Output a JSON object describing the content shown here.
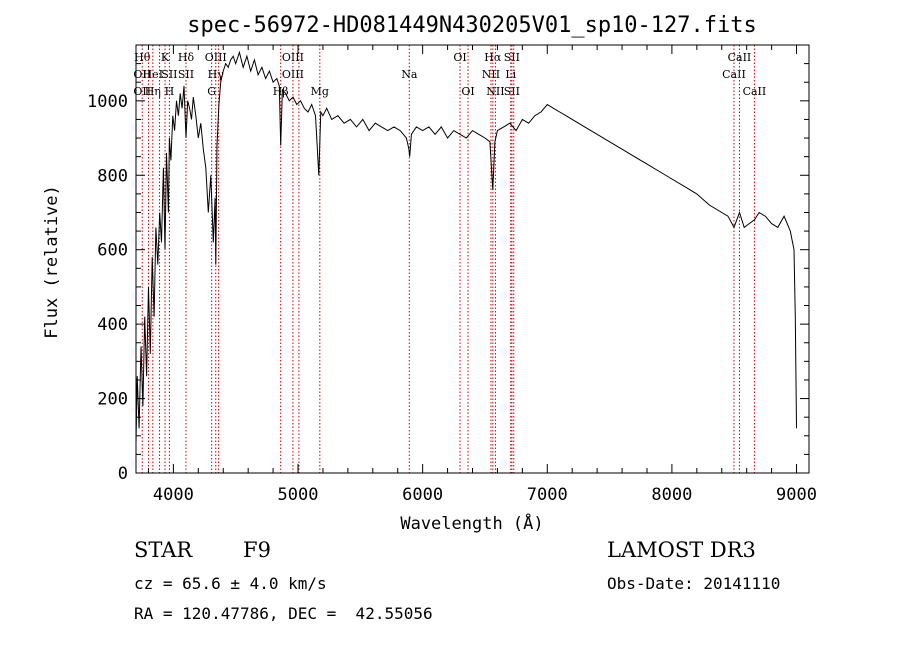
{
  "chart_data": {
    "type": "line",
    "title": "spec-56972-HD081449N430205V01_sp10-127.fits",
    "xlabel": "Wavelength (Å)",
    "ylabel": "Flux (relative)",
    "xlim": [
      3700,
      9100
    ],
    "ylim": [
      0,
      1150
    ],
    "xticks": [
      4000,
      5000,
      6000,
      7000,
      8000,
      9000
    ],
    "yticks": [
      0,
      200,
      400,
      600,
      800,
      1000
    ],
    "grid": false,
    "series": [
      {
        "name": "flux",
        "x": [
          3700,
          3710,
          3725,
          3740,
          3755,
          3770,
          3785,
          3800,
          3815,
          3830,
          3845,
          3860,
          3875,
          3890,
          3905,
          3920,
          3933,
          3945,
          3960,
          3968,
          3980,
          3995,
          4010,
          4025,
          4040,
          4055,
          4070,
          4085,
          4101,
          4115,
          4130,
          4145,
          4160,
          4180,
          4200,
          4220,
          4240,
          4260,
          4280,
          4300,
          4320,
          4335,
          4340,
          4350,
          4365,
          4380,
          4400,
          4420,
          4440,
          4460,
          4480,
          4500,
          4530,
          4560,
          4590,
          4620,
          4650,
          4680,
          4710,
          4740,
          4770,
          4800,
          4830,
          4850,
          4861,
          4875,
          4900,
          4930,
          4960,
          4990,
          5020,
          5050,
          5080,
          5110,
          5140,
          5167,
          5183,
          5200,
          5230,
          5270,
          5320,
          5370,
          5420,
          5470,
          5520,
          5570,
          5620,
          5670,
          5720,
          5770,
          5820,
          5870,
          5890,
          5896,
          5910,
          5950,
          6000,
          6050,
          6100,
          6150,
          6200,
          6250,
          6300,
          6350,
          6400,
          6450,
          6500,
          6540,
          6563,
          6580,
          6600,
          6650,
          6700,
          6750,
          6800,
          6850,
          6900,
          6950,
          7000,
          7050,
          7100,
          7150,
          7200,
          7300,
          7400,
          7500,
          7600,
          7700,
          7800,
          7900,
          8000,
          8100,
          8200,
          8300,
          8400,
          8450,
          8498,
          8542,
          8580,
          8620,
          8662,
          8700,
          8750,
          8800,
          8850,
          8900,
          8950,
          8980,
          8990,
          9000
        ],
        "values": [
          80,
          260,
          120,
          340,
          180,
          420,
          260,
          500,
          320,
          580,
          420,
          660,
          560,
          700,
          620,
          820,
          600,
          860,
          700,
          900,
          840,
          960,
          920,
          1000,
          960,
          1020,
          980,
          1040,
          900,
          1000,
          980,
          950,
          1010,
          960,
          900,
          940,
          870,
          820,
          700,
          800,
          620,
          740,
          560,
          880,
          990,
          1050,
          1080,
          1100,
          1090,
          1110,
          1120,
          1100,
          1130,
          1090,
          1120,
          1080,
          1110,
          1070,
          1090,
          1060,
          1080,
          1050,
          1060,
          1040,
          880,
          1030,
          1020,
          1000,
          1010,
          990,
          1000,
          980,
          970,
          990,
          960,
          800,
          970,
          960,
          980,
          950,
          960,
          940,
          950,
          930,
          950,
          920,
          940,
          930,
          920,
          930,
          920,
          900,
          870,
          850,
          910,
          930,
          920,
          930,
          910,
          930,
          900,
          920,
          910,
          900,
          920,
          910,
          900,
          890,
          760,
          890,
          920,
          930,
          940,
          920,
          950,
          940,
          960,
          970,
          990,
          980,
          970,
          960,
          950,
          930,
          910,
          890,
          870,
          850,
          830,
          810,
          790,
          770,
          750,
          720,
          700,
          690,
          660,
          700,
          660,
          670,
          680,
          700,
          690,
          670,
          660,
          690,
          650,
          600,
          420,
          120
        ]
      }
    ],
    "lines": [
      {
        "x": 3750,
        "labels": [
          "Hθ",
          "OII",
          "OII"
        ]
      },
      {
        "x": 3800,
        "labels": [
          "",
          "",
          ""
        ]
      },
      {
        "x": 3835,
        "labels": [
          "",
          "HeI",
          "Hη"
        ]
      },
      {
        "x": 3889,
        "labels": [
          "",
          "",
          ""
        ]
      },
      {
        "x": 3933,
        "labels": [
          "K",
          "",
          ""
        ]
      },
      {
        "x": 3968,
        "labels": [
          "",
          "SII",
          "H"
        ]
      },
      {
        "x": 4101,
        "labels": [
          "Hδ",
          "SII",
          ""
        ]
      },
      {
        "x": 4307,
        "labels": [
          "",
          "",
          "G"
        ]
      },
      {
        "x": 4340,
        "labels": [
          "OIII",
          "Hγ",
          ""
        ]
      },
      {
        "x": 4363,
        "labels": [
          "",
          "",
          ""
        ]
      },
      {
        "x": 4861,
        "labels": [
          "",
          "",
          "Hβ"
        ]
      },
      {
        "x": 4959,
        "labels": [
          "OIII",
          "OIII",
          ""
        ]
      },
      {
        "x": 5007,
        "labels": [
          "",
          "",
          ""
        ]
      },
      {
        "x": 5175,
        "labels": [
          "",
          "",
          "Mg"
        ]
      },
      {
        "x": 5893,
        "labels": [
          "",
          "Na",
          ""
        ]
      },
      {
        "x": 6300,
        "labels": [
          "OI",
          "",
          ""
        ]
      },
      {
        "x": 6364,
        "labels": [
          "",
          "",
          "OI"
        ]
      },
      {
        "x": 6548,
        "labels": [
          "",
          "NII",
          ""
        ]
      },
      {
        "x": 6563,
        "labels": [
          "Hα",
          "",
          ""
        ]
      },
      {
        "x": 6584,
        "labels": [
          "",
          "",
          "NII"
        ]
      },
      {
        "x": 6707,
        "labels": [
          "",
          "Li",
          ""
        ]
      },
      {
        "x": 6716,
        "labels": [
          "SII",
          "",
          "SII"
        ]
      },
      {
        "x": 6731,
        "labels": [
          "",
          "",
          ""
        ]
      },
      {
        "x": 8498,
        "labels": [
          "",
          "CaII",
          ""
        ]
      },
      {
        "x": 8542,
        "labels": [
          "CaII",
          "",
          ""
        ]
      },
      {
        "x": 8662,
        "labels": [
          "",
          "",
          "CaII"
        ]
      }
    ]
  },
  "info": {
    "object_type": "STAR",
    "subclass": "F9",
    "survey": "LAMOST DR3",
    "cz": "cz = 65.6 ± 4.0 km/s",
    "obs_date": "Obs-Date: 20141110",
    "coords": "RA = 120.47786, DEC =  42.55056"
  },
  "colors": {
    "axis": "#000000",
    "spectrum": "#000000",
    "line_marker": "#cc0000"
  }
}
